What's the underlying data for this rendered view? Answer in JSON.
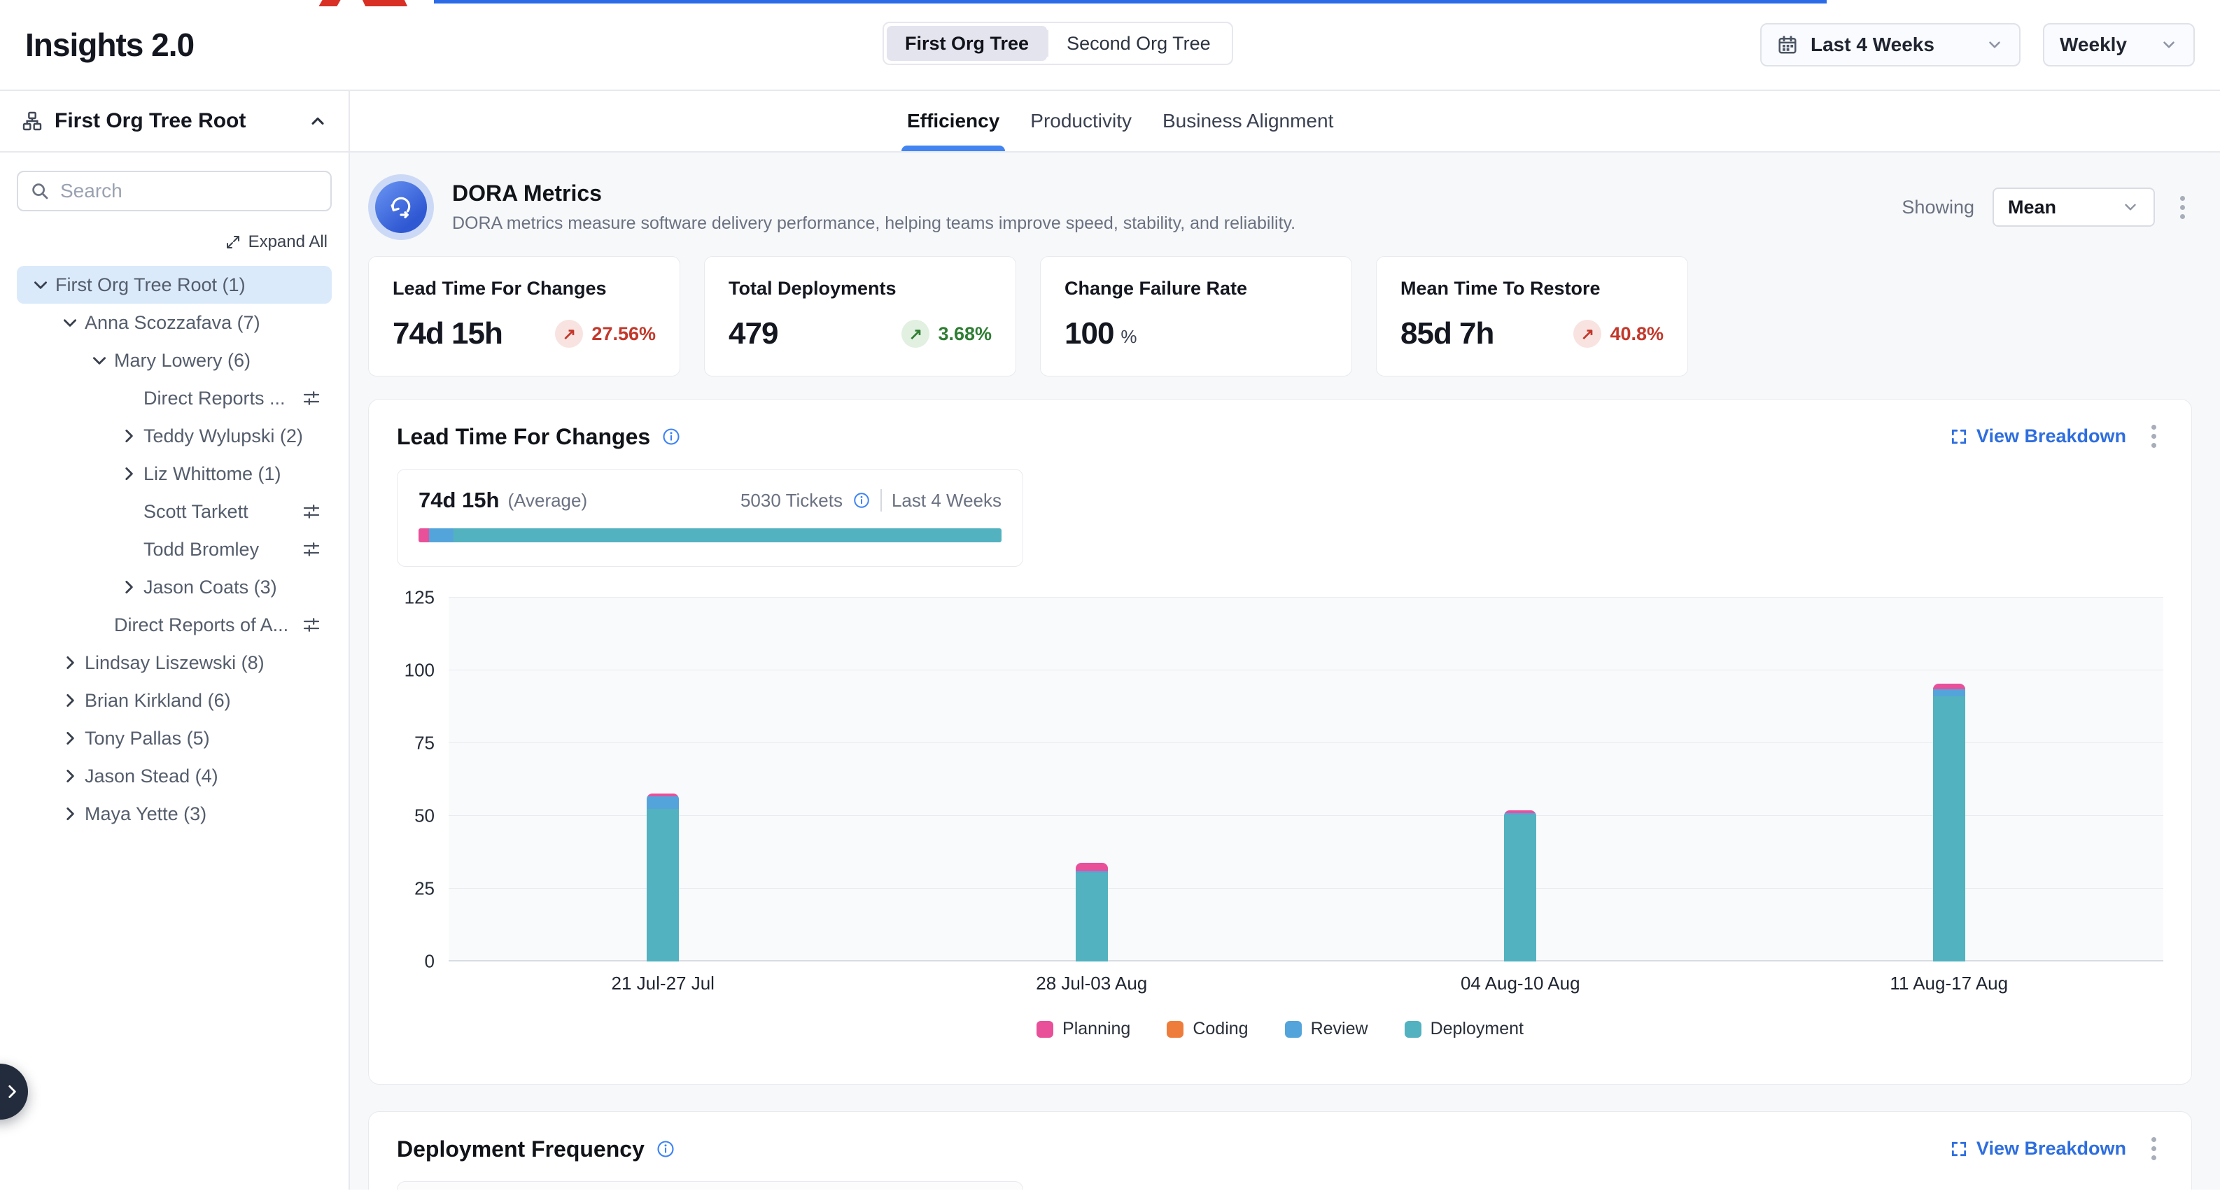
{
  "page": {
    "title": "Insights 2.0"
  },
  "header": {
    "org_toggle": {
      "options": [
        "First Org Tree",
        "Second Org Tree"
      ],
      "selected": "First Org Tree"
    },
    "date_range_value": "Last 4 Weeks",
    "granularity_value": "Weekly"
  },
  "sidebar": {
    "header_label": "First Org Tree Root",
    "search_placeholder": "Search",
    "expand_all_label": "Expand All",
    "tree": [
      {
        "label": "First Org Tree Root (1)",
        "level": 0,
        "chevron": "down",
        "selected": true,
        "filter_icon": false
      },
      {
        "label": "Anna Scozzafava (7)",
        "level": 1,
        "chevron": "down",
        "selected": false,
        "filter_icon": false
      },
      {
        "label": "Mary Lowery (6)",
        "level": 2,
        "chevron": "down",
        "selected": false,
        "filter_icon": false
      },
      {
        "label": "Direct Reports ...",
        "level": 3,
        "chevron": "none",
        "selected": false,
        "filter_icon": true
      },
      {
        "label": "Teddy Wylupski (2)",
        "level": 3,
        "chevron": "right",
        "selected": false,
        "filter_icon": false
      },
      {
        "label": "Liz Whittome (1)",
        "level": 3,
        "chevron": "right",
        "selected": false,
        "filter_icon": false
      },
      {
        "label": "Scott Tarkett",
        "level": 3,
        "chevron": "none",
        "selected": false,
        "filter_icon": true
      },
      {
        "label": "Todd Bromley",
        "level": 3,
        "chevron": "none",
        "selected": false,
        "filter_icon": true
      },
      {
        "label": "Jason Coats (3)",
        "level": 3,
        "chevron": "right",
        "selected": false,
        "filter_icon": false
      },
      {
        "label": "Direct Reports of A...",
        "level": 2,
        "chevron": "none",
        "selected": false,
        "filter_icon": true
      },
      {
        "label": "Lindsay Liszewski (8)",
        "level": 1,
        "chevron": "right",
        "selected": false,
        "filter_icon": false
      },
      {
        "label": "Brian Kirkland (6)",
        "level": 1,
        "chevron": "right",
        "selected": false,
        "filter_icon": false
      },
      {
        "label": "Tony Pallas (5)",
        "level": 1,
        "chevron": "right",
        "selected": false,
        "filter_icon": false
      },
      {
        "label": "Jason Stead (4)",
        "level": 1,
        "chevron": "right",
        "selected": false,
        "filter_icon": false
      },
      {
        "label": "Maya Yette (3)",
        "level": 1,
        "chevron": "right",
        "selected": false,
        "filter_icon": false
      }
    ]
  },
  "tabs": {
    "items": [
      "Efficiency",
      "Productivity",
      "Business Alignment"
    ],
    "active_index": 0
  },
  "dora": {
    "title": "DORA Metrics",
    "subtitle": "DORA metrics measure software delivery performance, helping teams improve speed, stability, and reliability.",
    "showing_label": "Showing",
    "showing_value": "Mean",
    "trend_up_char": "↗",
    "stats": [
      {
        "label": "Lead Time For Changes",
        "value": "74d 15h",
        "unit": "",
        "delta": "27.56%",
        "trend": "up",
        "sentiment": "bad"
      },
      {
        "label": "Total Deployments",
        "value": "479",
        "unit": "",
        "delta": "3.68%",
        "trend": "up",
        "sentiment": "good"
      },
      {
        "label": "Change Failure Rate",
        "value": "100",
        "unit": "%",
        "delta": "",
        "trend": "",
        "sentiment": ""
      },
      {
        "label": "Mean Time To Restore",
        "value": "85d 7h",
        "unit": "",
        "delta": "40.8%",
        "trend": "up",
        "sentiment": "bad"
      }
    ]
  },
  "lead_time_panel": {
    "title": "Lead Time For Changes",
    "view_breakdown_label": "View Breakdown",
    "summary": {
      "value": "74d 15h",
      "suffix": "(Average)",
      "tickets": "5030 Tickets",
      "range": "Last 4 Weeks",
      "distribution": [
        {
          "name": "Planning",
          "pct": 1.8
        },
        {
          "name": "Review",
          "pct": 4.2
        },
        {
          "name": "Deployment",
          "pct": 94.0
        }
      ]
    }
  },
  "chart_data": {
    "type": "bar",
    "stacked": true,
    "title": "Lead Time For Changes",
    "xlabel": "",
    "ylabel": "",
    "categories": [
      "21 Jul-27 Jul",
      "28 Jul-03 Aug",
      "04 Aug-10 Aug",
      "11 Aug-17 Aug"
    ],
    "series": [
      {
        "name": "Planning",
        "color": "#E8509A",
        "values": [
          1.0,
          3.0,
          1.0,
          2.0
        ]
      },
      {
        "name": "Coding",
        "color": "#EE7D3C",
        "values": [
          0,
          0,
          0,
          0
        ]
      },
      {
        "name": "Review",
        "color": "#54A4DC",
        "values": [
          4.3,
          0.5,
          0.5,
          2.4
        ]
      },
      {
        "name": "Deployment",
        "color": "#52B2BF",
        "values": [
          52.5,
          30.5,
          50.5,
          91.0
        ]
      }
    ],
    "ylim": [
      0,
      125
    ],
    "yticks": [
      0,
      25,
      50,
      75,
      100,
      125
    ],
    "grid": true,
    "legend_position": "bottom"
  },
  "deployment_panel": {
    "title": "Deployment Frequency",
    "view_breakdown_label": "View Breakdown"
  },
  "colors": {
    "accent_blue": "#3B82F6",
    "link_blue": "#2E6EDE",
    "bad_fg": "#C2382B",
    "bad_bg": "#F8E3E0",
    "good_fg": "#2E7D33",
    "good_bg": "#E1F0E0",
    "selected_row_bg": "#DBEAFB",
    "toggle_selected_bg": "#E4E4EF"
  }
}
